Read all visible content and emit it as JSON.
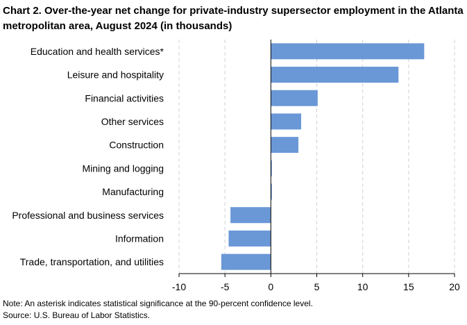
{
  "chart_data": {
    "type": "bar",
    "orientation": "horizontal",
    "title": "Chart 2. Over-the-year net change for private-industry supersector employment in the Atlanta metropolitan area, August 2024 (in thousands)",
    "categories": [
      "Education and health services*",
      "Leisure and hospitality",
      "Financial activities",
      "Other services",
      "Construction",
      "Mining and logging",
      "Manufacturing",
      "Professional and business services",
      "Information",
      "Trade, transportation, and utilities"
    ],
    "values": [
      16.7,
      13.9,
      5.1,
      3.3,
      3.0,
      0.0,
      0.0,
      -4.4,
      -4.6,
      -5.4
    ],
    "xlim": [
      -10,
      20
    ],
    "xticks": [
      "-10",
      "-5",
      "0",
      "5",
      "10",
      "15",
      "20"
    ],
    "xtick_values": [
      -10,
      -5,
      0,
      5,
      10,
      15,
      20
    ],
    "gridlines": "vertical dashed",
    "bar_color": "#6a98d7"
  },
  "notes": {
    "note": "Note: An asterisk indicates statistical significance at the 90-percent confidence level.",
    "source": "Source: U.S. Bureau of Labor Statistics."
  }
}
